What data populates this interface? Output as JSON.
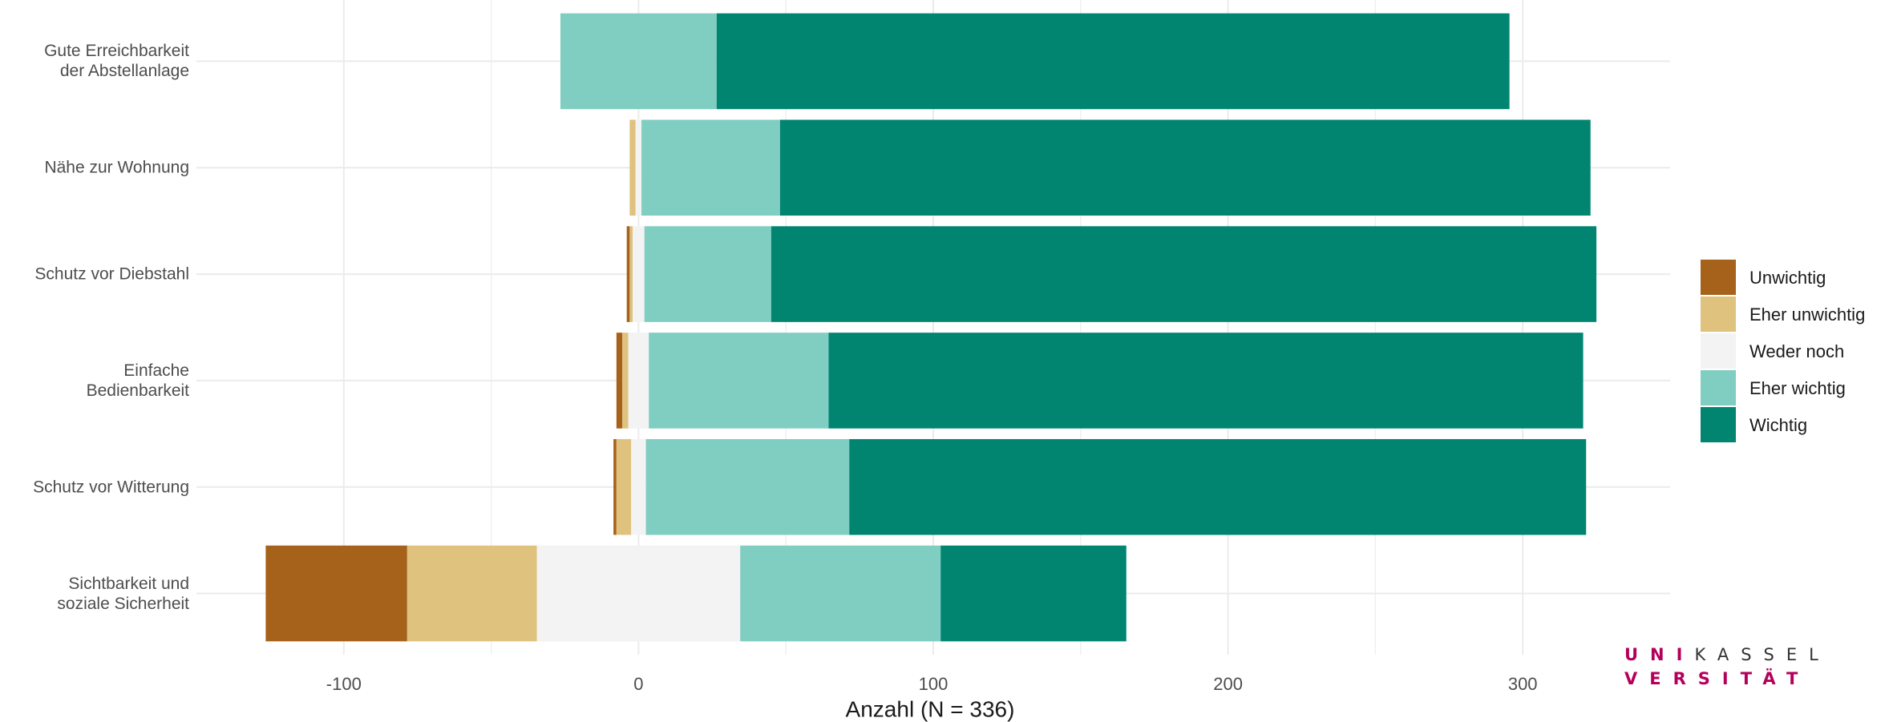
{
  "chart_data": {
    "type": "diverging-bar",
    "x_label": "Anzahl (N = 336)",
    "categories": [
      "Gute Erreichbarkeit\nder Abstellanlage",
      "Nähe zur Wohnung",
      "Schutz vor Diebstahl",
      "Einfache\nBedienbarkeit",
      "Schutz vor Witterung",
      "Sichtbarkeit und\nsoziale Sicherheit"
    ],
    "series": [
      {
        "name": "Unwichtig",
        "color": "#A6611A",
        "values": [
          null,
          null,
          1,
          2,
          1,
          48
        ]
      },
      {
        "name": "Eher unwichtig",
        "color": "#DFC27D",
        "values": [
          null,
          2,
          1,
          2,
          5,
          44
        ]
      },
      {
        "name": "Weder noch",
        "color": "#F3F3F3",
        "values": [
          null,
          2,
          4,
          7,
          5,
          69
        ]
      },
      {
        "name": "Eher wichtig",
        "color": "#80CDC1",
        "values": [
          53,
          47,
          43,
          61,
          69,
          68
        ]
      },
      {
        "name": "Wichtig",
        "color": "#018571",
        "values": [
          269,
          275,
          280,
          256,
          250,
          63
        ]
      }
    ],
    "xlim": [
      -150,
      350
    ],
    "xticks": [
      -100,
      0,
      100,
      200,
      300
    ],
    "grid": true,
    "legend": "right"
  },
  "logo": {
    "uni": "UNI",
    "kassel": "KASSEL",
    "versitaet": "VERSITÄT"
  }
}
